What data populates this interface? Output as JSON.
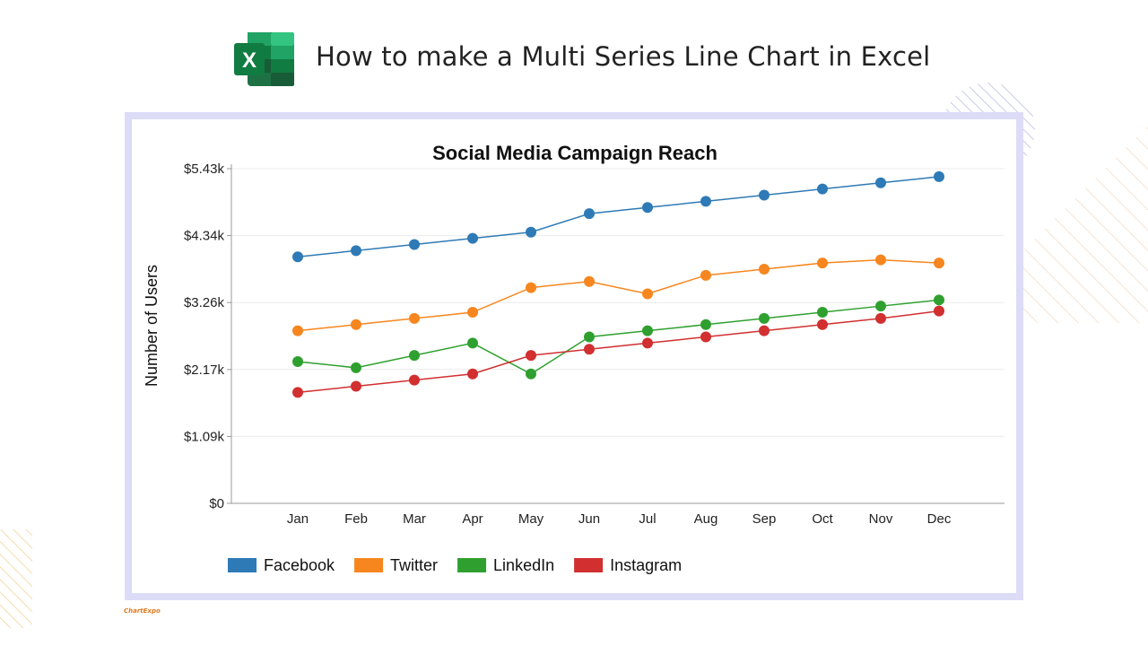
{
  "header": {
    "title": "How to make a Multi Series Line Chart in Excel",
    "logo_letter": "X"
  },
  "watermark": "ChartExpo",
  "colors": {
    "facebook": "#2e7ab6",
    "twitter": "#f7861f",
    "linkedin": "#2fa02f",
    "instagram": "#d12f30",
    "frame": "#dcdcf7",
    "excel_green": "#1e7145"
  },
  "chart_data": {
    "type": "line",
    "title": "Social Media Campaign Reach",
    "xlabel": "",
    "ylabel": "Number of Users",
    "categories": [
      "Jan",
      "Feb",
      "Mar",
      "Apr",
      "May",
      "Jun",
      "Jul",
      "Aug",
      "Sep",
      "Oct",
      "Nov",
      "Dec"
    ],
    "y_ticks": [
      0,
      1086,
      2172,
      3258,
      4344,
      5430
    ],
    "y_tick_labels": [
      "$0",
      "$1.09k",
      "$2.17k",
      "$3.26k",
      "$4.34k",
      "$5.43k"
    ],
    "ylim": [
      0,
      5430
    ],
    "grid": true,
    "legend_position": "bottom-left",
    "series": [
      {
        "name": "Facebook",
        "color": "#2e7ab6",
        "values": [
          4000,
          4100,
          4200,
          4300,
          4400,
          4700,
          4800,
          4900,
          5000,
          5100,
          5200,
          5300
        ]
      },
      {
        "name": "Twitter",
        "color": "#f7861f",
        "values": [
          2800,
          2900,
          3000,
          3100,
          3500,
          3600,
          3400,
          3700,
          3800,
          3900,
          3950,
          3900
        ]
      },
      {
        "name": "LinkedIn",
        "color": "#2fa02f",
        "values": [
          2300,
          2200,
          2400,
          2600,
          2100,
          2700,
          2800,
          2900,
          3000,
          3100,
          3200,
          3300
        ]
      },
      {
        "name": "Instagram",
        "color": "#d12f30",
        "values": [
          1800,
          1900,
          2000,
          2100,
          2400,
          2500,
          2600,
          2700,
          2800,
          2900,
          3000,
          3120
        ]
      }
    ]
  }
}
